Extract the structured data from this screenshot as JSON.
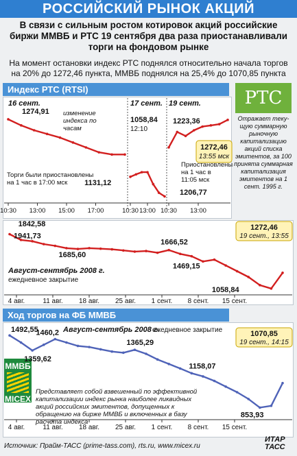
{
  "header": {
    "title": "РОССИЙСКИЙ РЫНОК АКЦИЙ",
    "headline": "В связи с сильным ростом котировок акций российские биржи ММВБ и РТС 19 сентября два раза приостанавливали торги на фондовом рынке",
    "subhead": "На момент остановки индекс РТС поднялся относительно начала торгов на 20% до 1272,46 пункта, ММВБ поднялся на 25,4% до 1070,85 пункта"
  },
  "rts_section": {
    "title": "Индекс РТС (RTSI)",
    "logo": "РТС",
    "side_note": "Отражает теку-щую суммарную рыночную капитализацию акций списка эмитентов, за 100 принята суммарная капитализация эмитентов на 1 сент. 1995 г."
  },
  "mmvb_section": {
    "title": "Ход торгов на ФБ ММВБ",
    "logo_top": "ММВБ",
    "logo_bottom": "MICEX",
    "note": "Представляет собой взвешенный по эффективной капитализации индекс рынка наиболее ликвидных акций российских эмитентов, допущенных к обращению на бирже ММВБ и включенных в базу расчета индекса"
  },
  "footer": {
    "source": "Источник: Прайм-ТАСС (prime-tass.com), rts.ru, www.micex.ru",
    "agency_top": "ИТАР",
    "agency_bottom": "ТАСС"
  },
  "colors": {
    "line": "#d21f1f",
    "line_blue": "#4f63b8",
    "banner": "#2f7fd0",
    "section": "#4a92d6",
    "callout": "#fff3b8"
  },
  "chart_data": [
    {
      "type": "line",
      "title": "Индекс РТС (RTSI)",
      "panels": [
        {
          "date": "16 сент.",
          "x_ticks": [
            "10:30",
            "13:00",
            "15:00",
            "17:00"
          ],
          "x": [
            "10:30",
            "11:00",
            "12:00",
            "13:00",
            "14:00",
            "15:00",
            "16:00",
            "17:00",
            "17:30",
            "18:30"
          ],
          "values": [
            1274.91,
            1250,
            1230,
            1215,
            1200,
            1180,
            1160,
            1140,
            1131.12,
            1131.12
          ],
          "labels": {
            "high": "1274,91",
            "low": "1131,12",
            "note_hours": "изменение индекса по часам",
            "note_halt": "Торги были приостановлены на 1 час в 17:00 мск"
          }
        },
        {
          "date": "17 сент.",
          "x_ticks": [
            "10:30",
            "13:00"
          ],
          "x": [
            "10:30",
            "11:00",
            "11:30",
            "12:10",
            "12:30",
            "13:00",
            "13:30"
          ],
          "values": [
            1040,
            1050,
            1058.84,
            1058.84,
            1010,
            975,
            960
          ],
          "labels": {
            "value": "1058,84",
            "time": "12:10"
          }
        },
        {
          "date": "19 сент.",
          "x_ticks": [
            "10:30",
            "13:00"
          ],
          "x": [
            "10:30",
            "10:50",
            "11:05",
            "11:30",
            "12:30",
            "13:00",
            "13:30",
            "13:55"
          ],
          "values": [
            1160,
            1223.36,
            1206.77,
            1230,
            1245,
            1250,
            1255,
            1272.46
          ],
          "labels": {
            "high": "1223,36",
            "low": "1206,77",
            "last": "1272,46",
            "last_time": "13:55 мск",
            "note_halt": "Приостановлены на 1 час в 11:05 мск"
          }
        }
      ]
    },
    {
      "type": "line",
      "title": "Август-сентябрь 2008 г.",
      "subtitle": "ежедневное закрытие",
      "x_ticks": [
        "4 авг.",
        "11 авг.",
        "18 авг.",
        "25 авг.",
        "1 сент.",
        "8 сент.",
        "15 сент."
      ],
      "values": [
        1941.73,
        1842.58,
        1820,
        1770,
        1740,
        1700,
        1685.6,
        1700,
        1690,
        1680,
        1660,
        1640,
        1650,
        1620,
        1666.52,
        1600,
        1560,
        1469.15,
        1500,
        1400,
        1300,
        1200,
        1058.84,
        1000,
        1272.46
      ],
      "labels": {
        "last": "1272,46",
        "last_time": "19 сент., 13:55"
      }
    },
    {
      "type": "line",
      "title": "Август-сентябрь 2008 г.",
      "subtitle": "ежедневное закрытие",
      "x_ticks": [
        "4 авг.",
        "11 авг.",
        "18 авг.",
        "25 авг.",
        "1 сент.",
        "8 сент.",
        "15 сент."
      ],
      "values": [
        1492.55,
        1430,
        1359.62,
        1410,
        1460.2,
        1430,
        1400,
        1390,
        1370,
        1350,
        1340,
        1365.29,
        1330,
        1280,
        1240,
        1200,
        1158.07,
        1130,
        1090,
        1040,
        990,
        930,
        853.93,
        870,
        1070.85
      ],
      "labels": {
        "last": "1070,85",
        "last_time": "19 сент., 14:15"
      }
    }
  ]
}
